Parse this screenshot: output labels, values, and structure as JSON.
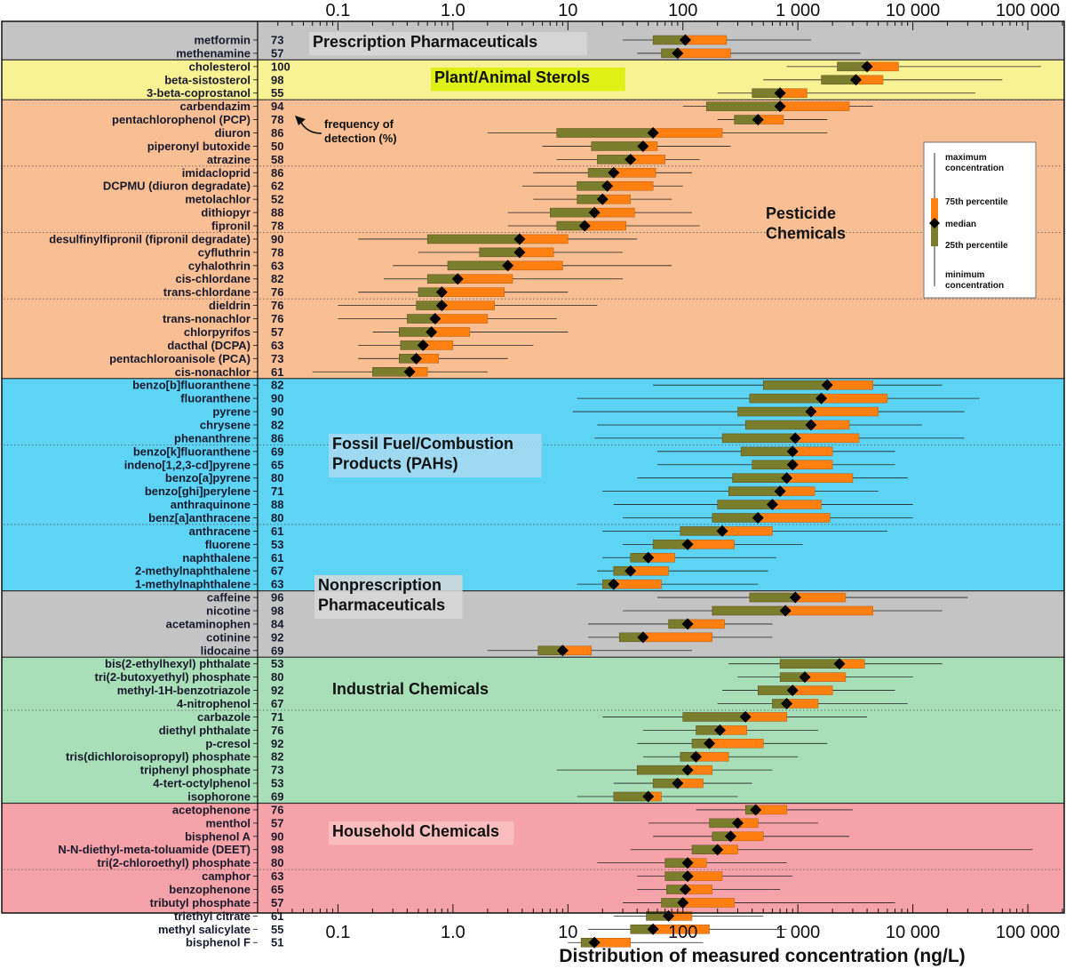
{
  "chart_data": {
    "type": "box",
    "xlabel": "Distribution of measured concentration (ng/L)",
    "x_scale": "log",
    "xlim": [
      0.02,
      200000
    ],
    "x_ticks": [
      {
        "value": 0.1,
        "label": "0.1"
      },
      {
        "value": 1,
        "label": "1.0"
      },
      {
        "value": 10,
        "label": "10"
      },
      {
        "value": 100,
        "label": "100"
      },
      {
        "value": 1000,
        "label": "1 000"
      },
      {
        "value": 10000,
        "label": "10 000"
      },
      {
        "value": 100000,
        "label": "100 000"
      }
    ],
    "groups": [
      {
        "name": "Prescription  Pharmaceuticals",
        "color": "#c4c4c4",
        "title_style": "boxed"
      },
      {
        "name": "Plant/Animal Sterols",
        "color": "#f7f294",
        "title_style": "highlight"
      },
      {
        "name": "Pesticide\nChemicals",
        "color": "#f8be94",
        "title_style": "plain"
      },
      {
        "name": "Fossil Fuel/Combustion\nProducts (PAHs)",
        "color": "#5dd4f4",
        "title_style": "boxed"
      },
      {
        "name": "Nonprescription\nPharmaceuticals",
        "color": "#c4c4c4",
        "title_style": "boxed"
      },
      {
        "name": "Industrial Chemicals",
        "color": "#a8deb8",
        "title_style": "plain"
      },
      {
        "name": "Household Chemicals",
        "color": "#f5a3a8",
        "title_style": "boxed"
      }
    ],
    "rows": [
      {
        "name": "metformin",
        "freq": 73,
        "group": 0,
        "min": 30,
        "q1": 55,
        "median": 105,
        "q3": 240,
        "max": 1300
      },
      {
        "name": "methenamine",
        "freq": 57,
        "group": 0,
        "min": 40,
        "q1": 65,
        "median": 90,
        "q3": 260,
        "max": 3500
      },
      {
        "name": "cholesterol",
        "freq": 100,
        "group": 1,
        "min": 800,
        "q1": 2200,
        "median": 4000,
        "q3": 7500,
        "max": 130000
      },
      {
        "name": "beta-sistosterol",
        "freq": 98,
        "group": 1,
        "min": 500,
        "q1": 1600,
        "median": 3200,
        "q3": 5500,
        "max": 60000
      },
      {
        "name": "3-beta-coprostanol",
        "freq": 55,
        "group": 1,
        "min": 200,
        "q1": 400,
        "median": 700,
        "q3": 1200,
        "max": 35000,
        "divider_after": true
      },
      {
        "name": "carbendazim",
        "freq": 94,
        "group": 2,
        "min": 100,
        "q1": 160,
        "median": 700,
        "q3": 2800,
        "max": 4500
      },
      {
        "name": "pentachlorophenol (PCP)",
        "freq": 78,
        "group": 2,
        "min": 200,
        "q1": 280,
        "median": 450,
        "q3": 750,
        "max": 1800
      },
      {
        "name": "diuron",
        "freq": 86,
        "group": 2,
        "min": 2,
        "q1": 8,
        "median": 55,
        "q3": 220,
        "max": 1800
      },
      {
        "name": "piperonyl butoxide",
        "freq": 50,
        "group": 2,
        "min": 6,
        "q1": 16,
        "median": 45,
        "q3": 60,
        "max": 260
      },
      {
        "name": "atrazine",
        "freq": 58,
        "group": 2,
        "min": 8,
        "q1": 18,
        "median": 35,
        "q3": 70,
        "max": 140,
        "divider_after": true
      },
      {
        "name": "imidacloprid",
        "freq": 86,
        "group": 2,
        "min": 5,
        "q1": 15,
        "median": 25,
        "q3": 58,
        "max": 120
      },
      {
        "name": "DCPMU (diuron degradate)",
        "freq": 62,
        "group": 2,
        "min": 4,
        "q1": 12,
        "median": 22,
        "q3": 55,
        "max": 100
      },
      {
        "name": "metolachlor",
        "freq": 52,
        "group": 2,
        "min": 5,
        "q1": 12,
        "median": 20,
        "q3": 35,
        "max": 80
      },
      {
        "name": "dithiopyr",
        "freq": 88,
        "group": 2,
        "min": 3,
        "q1": 7,
        "median": 17,
        "q3": 38,
        "max": 120
      },
      {
        "name": "fipronil",
        "freq": 78,
        "group": 2,
        "min": 3,
        "q1": 8,
        "median": 14,
        "q3": 32,
        "max": 140,
        "divider_after": true
      },
      {
        "name": "desulfinylfipronil (fipronil degradate)",
        "freq": 90,
        "group": 2,
        "min": 0.15,
        "q1": 0.6,
        "median": 3.8,
        "q3": 10,
        "max": 40
      },
      {
        "name": "cyfluthrin",
        "freq": 78,
        "group": 2,
        "min": 0.5,
        "q1": 1.7,
        "median": 3.8,
        "q3": 7.5,
        "max": 30
      },
      {
        "name": "cyhalothrin",
        "freq": 63,
        "group": 2,
        "min": 0.3,
        "q1": 0.9,
        "median": 3.0,
        "q3": 9,
        "max": 80
      },
      {
        "name": "cis-chlordane",
        "freq": 82,
        "group": 2,
        "min": 0.25,
        "q1": 0.6,
        "median": 1.1,
        "q3": 3.3,
        "max": 30
      },
      {
        "name": "trans-chlordane",
        "freq": 76,
        "group": 2,
        "min": 0.15,
        "q1": 0.5,
        "median": 0.8,
        "q3": 2.8,
        "max": 10,
        "divider_after": true
      },
      {
        "name": "dieldrin",
        "freq": 76,
        "group": 2,
        "min": 0.1,
        "q1": 0.48,
        "median": 0.8,
        "q3": 2.3,
        "max": 18
      },
      {
        "name": "trans-nonachlor",
        "freq": 76,
        "group": 2,
        "min": 0.1,
        "q1": 0.4,
        "median": 0.7,
        "q3": 2.0,
        "max": 8
      },
      {
        "name": "chlorpyrifos",
        "freq": 57,
        "group": 2,
        "min": 0.2,
        "q1": 0.34,
        "median": 0.65,
        "q3": 1.4,
        "max": 10
      },
      {
        "name": "dacthal (DCPA)",
        "freq": 63,
        "group": 2,
        "min": 0.15,
        "q1": 0.35,
        "median": 0.55,
        "q3": 1.0,
        "max": 5
      },
      {
        "name": "pentachloroanisole (PCA)",
        "freq": 73,
        "group": 2,
        "min": 0.15,
        "q1": 0.34,
        "median": 0.48,
        "q3": 0.75,
        "max": 3
      },
      {
        "name": "cis-nonachlor",
        "freq": 61,
        "group": 2,
        "min": 0.06,
        "q1": 0.2,
        "median": 0.42,
        "q3": 0.6,
        "max": 2
      },
      {
        "name": "benzo[b]fluoranthene",
        "freq": 82,
        "group": 3,
        "min": 55,
        "q1": 500,
        "median": 1800,
        "q3": 4500,
        "max": 18000
      },
      {
        "name": "fluoranthene",
        "freq": 90,
        "group": 3,
        "min": 12,
        "q1": 380,
        "median": 1600,
        "q3": 6000,
        "max": 38000
      },
      {
        "name": "pyrene",
        "freq": 90,
        "group": 3,
        "min": 11,
        "q1": 300,
        "median": 1300,
        "q3": 5000,
        "max": 28000
      },
      {
        "name": "chrysene",
        "freq": 82,
        "group": 3,
        "min": 18,
        "q1": 350,
        "median": 1300,
        "q3": 2800,
        "max": 12000
      },
      {
        "name": "phenanthrene",
        "freq": 86,
        "group": 3,
        "min": 17,
        "q1": 220,
        "median": 950,
        "q3": 3400,
        "max": 28000,
        "divider_after": true
      },
      {
        "name": "benzo[k]fluoranthene",
        "freq": 69,
        "group": 3,
        "min": 60,
        "q1": 320,
        "median": 900,
        "q3": 2000,
        "max": 7000
      },
      {
        "name": "indeno[1,2,3-cd]pyrene",
        "freq": 65,
        "group": 3,
        "min": 60,
        "q1": 400,
        "median": 900,
        "q3": 2000,
        "max": 7000
      },
      {
        "name": "benzo[a]pyrene",
        "freq": 80,
        "group": 3,
        "min": 40,
        "q1": 270,
        "median": 800,
        "q3": 3000,
        "max": 9000
      },
      {
        "name": "benzo[ghi]perylene",
        "freq": 71,
        "group": 3,
        "min": 20,
        "q1": 250,
        "median": 700,
        "q3": 1400,
        "max": 5000
      },
      {
        "name": "anthraquinone",
        "freq": 88,
        "group": 3,
        "min": 25,
        "q1": 200,
        "median": 600,
        "q3": 1600,
        "max": 10000
      },
      {
        "name": "benz[a]anthracene",
        "freq": 80,
        "group": 3,
        "min": 30,
        "q1": 180,
        "median": 450,
        "q3": 1900,
        "max": 10000,
        "divider_after": true
      },
      {
        "name": "anthracene",
        "freq": 61,
        "group": 3,
        "min": 20,
        "q1": 95,
        "median": 220,
        "q3": 600,
        "max": 6000
      },
      {
        "name": "fluorene",
        "freq": 53,
        "group": 3,
        "min": 30,
        "q1": 55,
        "median": 110,
        "q3": 280,
        "max": 1100
      },
      {
        "name": "naphthalene",
        "freq": 61,
        "group": 3,
        "min": 20,
        "q1": 35,
        "median": 50,
        "q3": 85,
        "max": 650
      },
      {
        "name": "2-methylnaphthalene",
        "freq": 67,
        "group": 3,
        "min": 18,
        "q1": 25,
        "median": 35,
        "q3": 75,
        "max": 550
      },
      {
        "name": "1-methylnaphthalene",
        "freq": 63,
        "group": 3,
        "min": 12,
        "q1": 20,
        "median": 25,
        "q3": 65,
        "max": 450
      },
      {
        "name": "caffeine",
        "freq": 96,
        "group": 4,
        "min": 60,
        "q1": 380,
        "median": 950,
        "q3": 2600,
        "max": 30000
      },
      {
        "name": "nicotine",
        "freq": 98,
        "group": 4,
        "min": 30,
        "q1": 180,
        "median": 780,
        "q3": 4500,
        "max": 18000
      },
      {
        "name": "acetaminophen",
        "freq": 84,
        "group": 4,
        "min": 15,
        "q1": 75,
        "median": 110,
        "q3": 230,
        "max": 600
      },
      {
        "name": "cotinine",
        "freq": 92,
        "group": 4,
        "min": 15,
        "q1": 28,
        "median": 45,
        "q3": 180,
        "max": 600
      },
      {
        "name": "lidocaine",
        "freq": 69,
        "group": 4,
        "min": 2,
        "q1": 5.5,
        "median": 9,
        "q3": 16,
        "max": 120
      },
      {
        "name": "bis(2-ethylhexyl) phthalate",
        "freq": 53,
        "group": 5,
        "min": 250,
        "q1": 700,
        "median": 2300,
        "q3": 3800,
        "max": 18000
      },
      {
        "name": "tri(2-butoxyethyl) phosphate",
        "freq": 80,
        "group": 5,
        "min": 300,
        "q1": 700,
        "median": 1150,
        "q3": 2600,
        "max": 10000
      },
      {
        "name": "methyl-1H-benzotriazole",
        "freq": 92,
        "group": 5,
        "min": 220,
        "q1": 450,
        "median": 900,
        "q3": 2000,
        "max": 7000
      },
      {
        "name": "4-nitrophenol",
        "freq": 67,
        "group": 5,
        "min": 200,
        "q1": 600,
        "median": 800,
        "q3": 1500,
        "max": 9000,
        "divider_after": true
      },
      {
        "name": "carbazole",
        "freq": 71,
        "group": 5,
        "min": 20,
        "q1": 100,
        "median": 350,
        "q3": 800,
        "max": 4000
      },
      {
        "name": "diethyl phthalate",
        "freq": 76,
        "group": 5,
        "min": 45,
        "q1": 130,
        "median": 210,
        "q3": 360,
        "max": 1500
      },
      {
        "name": "p-cresol",
        "freq": 92,
        "group": 5,
        "min": 40,
        "q1": 120,
        "median": 170,
        "q3": 500,
        "max": 1800
      },
      {
        "name": "tris(dichloroisopropyl) phosphate",
        "freq": 82,
        "group": 5,
        "min": 45,
        "q1": 95,
        "median": 130,
        "q3": 250,
        "max": 1000
      },
      {
        "name": "triphenyl phosphate",
        "freq": 73,
        "group": 5,
        "min": 8,
        "q1": 40,
        "median": 110,
        "q3": 180,
        "max": 600
      },
      {
        "name": "4-tert-octylphenol",
        "freq": 53,
        "group": 5,
        "min": 25,
        "q1": 55,
        "median": 90,
        "q3": 150,
        "max": 400
      },
      {
        "name": "isophorone",
        "freq": 69,
        "group": 5,
        "min": 12,
        "q1": 25,
        "median": 50,
        "q3": 65,
        "max": 300
      },
      {
        "name": "acetophenone",
        "freq": 76,
        "group": 6,
        "min": 130,
        "q1": 350,
        "median": 430,
        "q3": 800,
        "max": 3000
      },
      {
        "name": "menthol",
        "freq": 57,
        "group": 6,
        "min": 50,
        "q1": 170,
        "median": 300,
        "q3": 450,
        "max": 1500
      },
      {
        "name": "bisphenol A",
        "freq": 90,
        "group": 6,
        "min": 55,
        "q1": 180,
        "median": 260,
        "q3": 500,
        "max": 2800
      },
      {
        "name": "N-N-diethyl-meta-toluamide (DEET)",
        "freq": 98,
        "group": 6,
        "min": 35,
        "q1": 120,
        "median": 200,
        "q3": 300,
        "max": 110000
      },
      {
        "name": "tri(2-chloroethyl) phosphate",
        "freq": 80,
        "group": 6,
        "min": 18,
        "q1": 70,
        "median": 110,
        "q3": 160,
        "max": 800,
        "divider_after": true
      },
      {
        "name": "camphor",
        "freq": 63,
        "group": 6,
        "min": 40,
        "q1": 70,
        "median": 110,
        "q3": 220,
        "max": 900
      },
      {
        "name": "benzophenone",
        "freq": 65,
        "group": 6,
        "min": 40,
        "q1": 72,
        "median": 105,
        "q3": 180,
        "max": 700
      },
      {
        "name": "tributyl phosphate",
        "freq": 57,
        "group": 6,
        "min": 30,
        "q1": 65,
        "median": 100,
        "q3": 280,
        "max": 7000
      },
      {
        "name": "triethyl citrate",
        "freq": 61,
        "group": 6,
        "min": 25,
        "q1": 48,
        "median": 75,
        "q3": 120,
        "max": 500
      },
      {
        "name": "methyl salicylate",
        "freq": 55,
        "group": 6,
        "min": 15,
        "q1": 35,
        "median": 55,
        "q3": 170,
        "max": 800
      },
      {
        "name": "bisphenol F",
        "freq": 51,
        "group": 6,
        "min": 10,
        "q1": 13,
        "median": 17,
        "q3": 35,
        "max": 150
      }
    ],
    "annotation": "frequency of\ndetection (%)",
    "legend": {
      "max": "maximum\nconcentration",
      "q3": "75th percentile",
      "median": "median",
      "q1": "25th percentile",
      "min": "minimum\nconcentration"
    },
    "colors": {
      "upper_box": "#ff7f10",
      "lower_box": "#7a7d2c",
      "box_outline": "#5a4a20",
      "median": "#000000",
      "whisker": "#222222"
    }
  }
}
